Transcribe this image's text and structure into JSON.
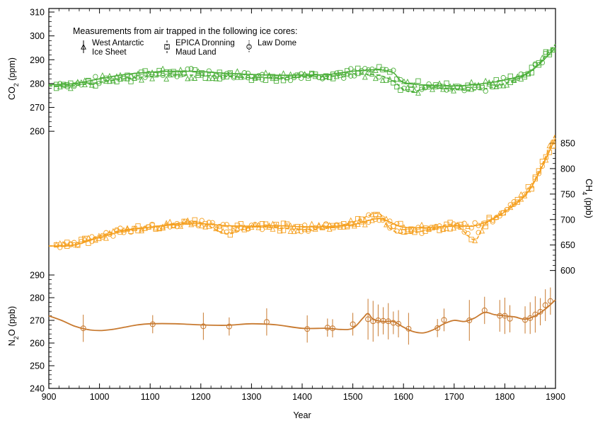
{
  "chart_data": {
    "type": "line",
    "xlabel": "Year",
    "xlim": [
      900,
      1900
    ],
    "xticks": [
      900,
      1000,
      1100,
      1200,
      1300,
      1400,
      1500,
      1600,
      1700,
      1800,
      1900
    ],
    "grid": false,
    "legend_title": "Measurements from air trapped in the following ice cores:",
    "legend_position": "top-left",
    "legend": [
      {
        "marker": "triangle",
        "label_line1": "West Antarctic",
        "label_line2": "Ice Sheet"
      },
      {
        "marker": "square",
        "label_line1": "EPICA Dronning",
        "label_line2": "Maud Land"
      },
      {
        "marker": "circle",
        "label_line1": "Law Dome",
        "label_line2": ""
      }
    ],
    "panels": [
      {
        "name": "CO2",
        "ylabel_main": "CO",
        "ylabel_sub": "2",
        "ylabel_unit": " (ppm)",
        "axis_side": "left",
        "color": "#4caf3a",
        "ylim": [
          255,
          310
        ],
        "yticks": [
          260,
          270,
          280,
          290,
          300,
          310
        ],
        "series": [
          {
            "style": "solid",
            "x": [
              900,
              950,
              1000,
              1050,
              1100,
              1150,
              1200,
              1250,
              1300,
              1350,
              1400,
              1450,
              1500,
              1550,
              1580,
              1600,
              1650,
              1700,
              1750,
              1800,
              1850,
              1900
            ],
            "values": [
              279.5,
              280.0,
              282.0,
              283.8,
              284.8,
              285.2,
              285.0,
              284.3,
              283.8,
              283.5,
              283.6,
              283.8,
              285.2,
              285.8,
              284.5,
              280.5,
              279.3,
              279.0,
              279.8,
              281.5,
              285.0,
              295.0
            ]
          },
          {
            "style": "dashed",
            "x": [
              900,
              950,
              1000,
              1050,
              1100,
              1150,
              1200,
              1250,
              1300,
              1350,
              1400,
              1450,
              1500,
              1550,
              1580,
              1600,
              1620,
              1650,
              1700,
              1750,
              1800,
              1850,
              1900
            ],
            "values": [
              279.0,
              279.2,
              280.5,
              282.0,
              283.0,
              283.5,
              283.5,
              283.0,
              282.5,
              282.5,
              282.8,
              283.0,
              284.0,
              283.5,
              281.0,
              277.5,
              276.5,
              278.5,
              277.5,
              277.5,
              280.0,
              285.0,
              296.5
            ]
          }
        ]
      },
      {
        "name": "CH4",
        "ylabel_main": "CH",
        "ylabel_sub": "4",
        "ylabel_unit": " (ppb)",
        "axis_side": "right",
        "color": "#f5a020",
        "ylim": [
          580,
          875
        ],
        "yticks": [
          600,
          650,
          700,
          750,
          800,
          850
        ],
        "series": [
          {
            "style": "solid",
            "x": [
              900,
              950,
              1000,
              1050,
              1100,
              1150,
              1200,
              1250,
              1300,
              1350,
              1400,
              1450,
              1500,
              1550,
              1580,
              1600,
              1650,
              1700,
              1720,
              1750,
              1800,
              1850,
              1900
            ],
            "values": [
              648,
              650,
              665,
              678,
              685,
              690,
              692,
              688,
              687,
              688,
              686,
              686,
              690,
              702,
              692,
              685,
              684,
              688,
              687,
              690,
              715,
              760,
              860
            ]
          },
          {
            "style": "dashed",
            "x": [
              900,
              950,
              1000,
              1050,
              1100,
              1150,
              1200,
              1250,
              1300,
              1350,
              1400,
              1450,
              1500,
              1550,
              1570,
              1600,
              1650,
              1700,
              1740,
              1760,
              1800,
              1850,
              1900
            ],
            "values": [
              648,
              650,
              668,
              680,
              685,
              692,
              694,
              672,
              685,
              684,
              680,
              683,
              695,
              712,
              685,
              672,
              680,
              690,
              660,
              690,
              718,
              762,
              868
            ]
          }
        ]
      },
      {
        "name": "N2O",
        "ylabel_main": "N",
        "ylabel_sub": "2",
        "ylabel_unit": "O (ppb)",
        "axis_side": "left",
        "color": "#c87a30",
        "ylim": [
          240,
          295
        ],
        "yticks": [
          240,
          250,
          260,
          270,
          280,
          290
        ],
        "smooth": {
          "x": [
            900,
            925,
            950,
            975,
            1000,
            1025,
            1050,
            1075,
            1100,
            1150,
            1200,
            1250,
            1300,
            1350,
            1400,
            1450,
            1475,
            1500,
            1520,
            1530,
            1540,
            1560,
            1580,
            1600,
            1620,
            1640,
            1660,
            1680,
            1700,
            1720,
            1740,
            1760,
            1780,
            1800,
            1820,
            1840,
            1860,
            1880,
            1900
          ],
          "values": [
            272,
            270,
            267.5,
            266,
            265.5,
            266,
            267,
            268,
            268.5,
            268.5,
            268,
            267.8,
            268.5,
            268,
            266.5,
            266.5,
            266,
            266.5,
            271,
            273,
            270.5,
            269.5,
            269.5,
            267,
            265,
            264.5,
            266,
            268.5,
            270,
            269.5,
            271,
            273.5,
            272.5,
            272,
            271.5,
            270.5,
            272,
            275,
            279
          ]
        },
        "points": {
          "x": [
            968,
            1105,
            1205,
            1256,
            1330,
            1410,
            1450,
            1460,
            1500,
            1530,
            1540,
            1550,
            1560,
            1570,
            1580,
            1590,
            1610,
            1667,
            1680,
            1730,
            1760,
            1790,
            1800,
            1810,
            1840,
            1850,
            1860,
            1870,
            1880,
            1890
          ],
          "values": [
            266.5,
            268.3,
            267.4,
            267.3,
            269.3,
            266.2,
            266.8,
            266.5,
            268.3,
            270.5,
            269.6,
            270.0,
            269.8,
            269.6,
            268.9,
            268.5,
            266.3,
            266.6,
            270.2,
            270.0,
            274.4,
            272.0,
            272.0,
            270.7,
            270.2,
            271.0,
            272.6,
            273.8,
            276.7,
            278.5
          ],
          "errors": [
            6,
            4,
            6,
            4,
            6,
            6,
            4,
            4,
            5,
            9,
            9,
            7,
            6,
            8,
            5,
            6,
            7,
            4,
            5,
            9,
            6,
            7,
            8,
            6,
            6,
            7,
            8,
            6,
            7,
            6
          ]
        }
      }
    ]
  }
}
